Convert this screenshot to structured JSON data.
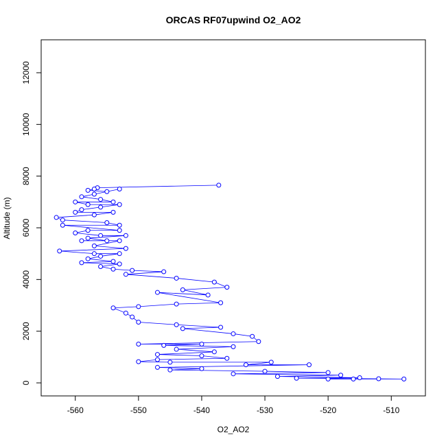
{
  "chart_data": {
    "type": "scatter",
    "title": "ORCAS RF07upwind O2_AO2",
    "x_label": "O2_AO2",
    "y_label": "Altitude (m)",
    "color": "#0000ff",
    "x": [
      -537.3,
      -556.5,
      -557,
      -558,
      -555,
      -553,
      -557,
      -559,
      -556,
      -554,
      -560,
      -558,
      -553,
      -556,
      -559,
      -560,
      -554,
      -557,
      -563,
      -562,
      -555,
      -553,
      -562,
      -553,
      -558,
      -560,
      -556,
      -552,
      -558,
      -555,
      -559,
      -553,
      -557,
      -552,
      -562.5,
      -557,
      -553,
      -556,
      -558,
      -554,
      -559,
      -553,
      -556,
      -554,
      -551,
      -546,
      -552,
      -544,
      -538,
      -536,
      -543,
      -539,
      -547,
      -537,
      -544,
      -550,
      -554,
      -552,
      -551,
      -550,
      -544,
      -537,
      -543,
      -535,
      -532,
      -531,
      -550,
      -540,
      -546,
      -535,
      -544,
      -538,
      -547,
      -540,
      -536,
      -547,
      -550,
      -545,
      -529,
      -533,
      -523,
      -547,
      -540,
      -545,
      -530,
      -520,
      -535,
      -518,
      -528,
      -515,
      -525,
      -512,
      -508,
      -520,
      -516
    ],
    "values": [
      7650,
      7550,
      7500,
      7450,
      7400,
      7500,
      7300,
      7200,
      7100,
      7000,
      7000,
      6900,
      6900,
      6800,
      6700,
      6600,
      6600,
      6500,
      6400,
      6300,
      6200,
      6100,
      6100,
      5900,
      5900,
      5800,
      5700,
      5700,
      5600,
      5500,
      5500,
      5500,
      5300,
      5200,
      5100,
      5000,
      5000,
      4900,
      4800,
      4700,
      4650,
      4600,
      4500,
      4400,
      4350,
      4300,
      4200,
      4050,
      3900,
      3700,
      3600,
      3400,
      3500,
      3100,
      3050,
      2950,
      2900,
      2700,
      2550,
      2350,
      2250,
      2150,
      2100,
      1900,
      1800,
      1600,
      1500,
      1500,
      1450,
      1400,
      1300,
      1200,
      1100,
      1050,
      950,
      900,
      820,
      800,
      800,
      700,
      700,
      600,
      550,
      500,
      450,
      400,
      350,
      300,
      250,
      200,
      180,
      160,
      150,
      150,
      150
    ],
    "xlim": [
      -565.4,
      -504.6
    ],
    "ylim": [
      -504,
      13274
    ],
    "xticks": [
      -560,
      -550,
      -540,
      -530,
      -520,
      -510
    ],
    "yticks": [
      0,
      2000,
      4000,
      6000,
      8000,
      10000,
      12000
    ]
  }
}
